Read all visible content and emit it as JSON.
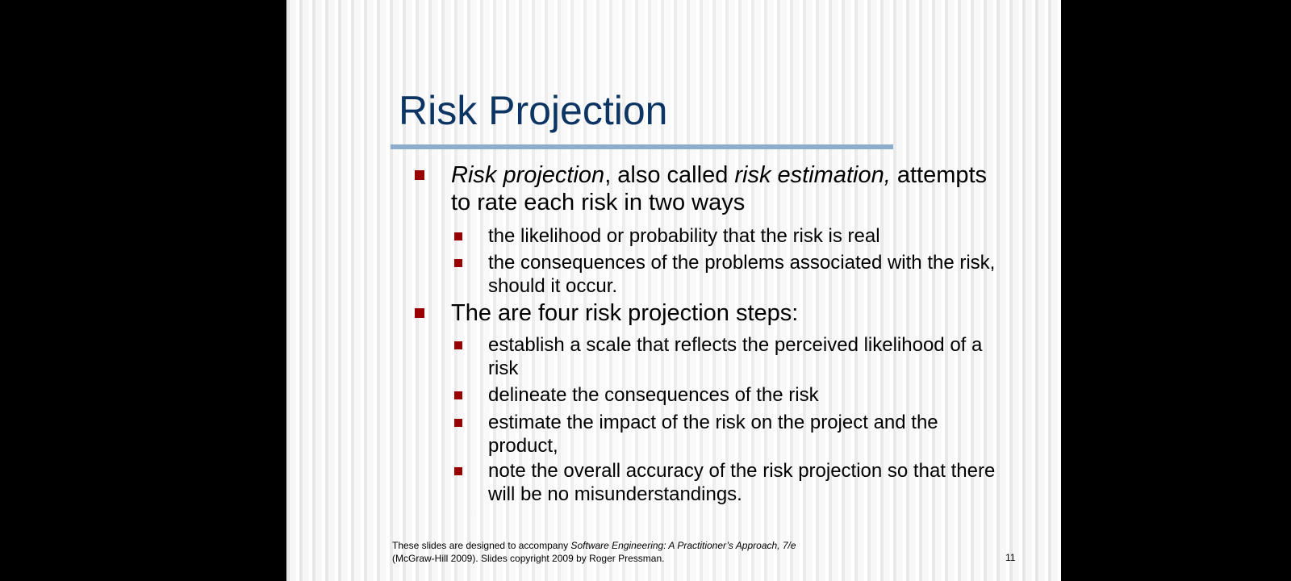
{
  "slide": {
    "title": "Risk Projection",
    "bullets": [
      {
        "parts": [
          {
            "text": "Risk projection",
            "italic": true
          },
          {
            "text": ", also called ",
            "italic": false
          },
          {
            "text": "risk estimation,",
            "italic": true
          },
          {
            "text": " attempts to rate each risk in two ways",
            "italic": false
          }
        ],
        "sub": [
          " the likelihood or probability that the risk is real",
          " the consequences of the problems associated with the risk, should it occur."
        ]
      },
      {
        "parts": [
          {
            "text": "The are four risk projection steps:",
            "italic": false
          }
        ],
        "sub": [
          "establish a scale that reflects the perceived likelihood of a risk",
          "delineate the consequences of the risk",
          "estimate the impact of the risk on the project and the product,",
          "note the overall accuracy of the risk projection so that there will be no misunderstandings."
        ]
      }
    ],
    "footer": {
      "prefix": "These slides are designed to accompany ",
      "book_title": "Software Engineering: A Practitioner’s Approach, 7/e",
      "line2": "(McGraw-Hill 2009). Slides copyright 2009 by Roger Pressman."
    },
    "page_number": "11",
    "colors": {
      "title": "#0c3564",
      "rule": "#8eaccd",
      "bullet": "#990000"
    }
  }
}
